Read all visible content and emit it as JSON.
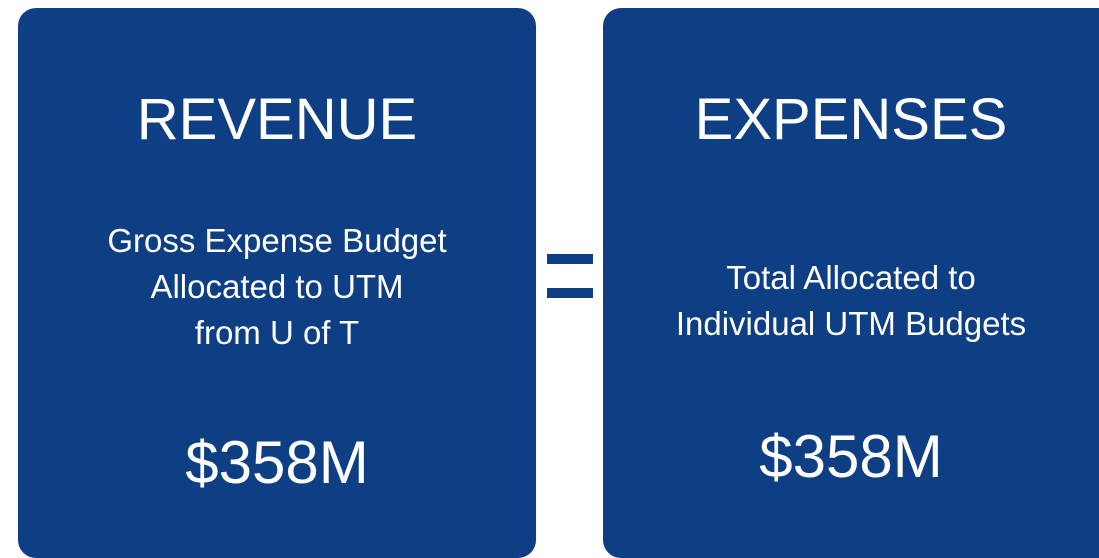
{
  "boxes": [
    {
      "title": "REVENUE",
      "lines": [
        "Gross Expense Budget",
        "Allocated to UTM",
        "from U of T"
      ],
      "amount": "$358M"
    },
    {
      "title": "EXPENSES",
      "lines": [
        "Total Allocated to",
        "Individual UTM Budgets"
      ],
      "amount": "$358M"
    }
  ]
}
